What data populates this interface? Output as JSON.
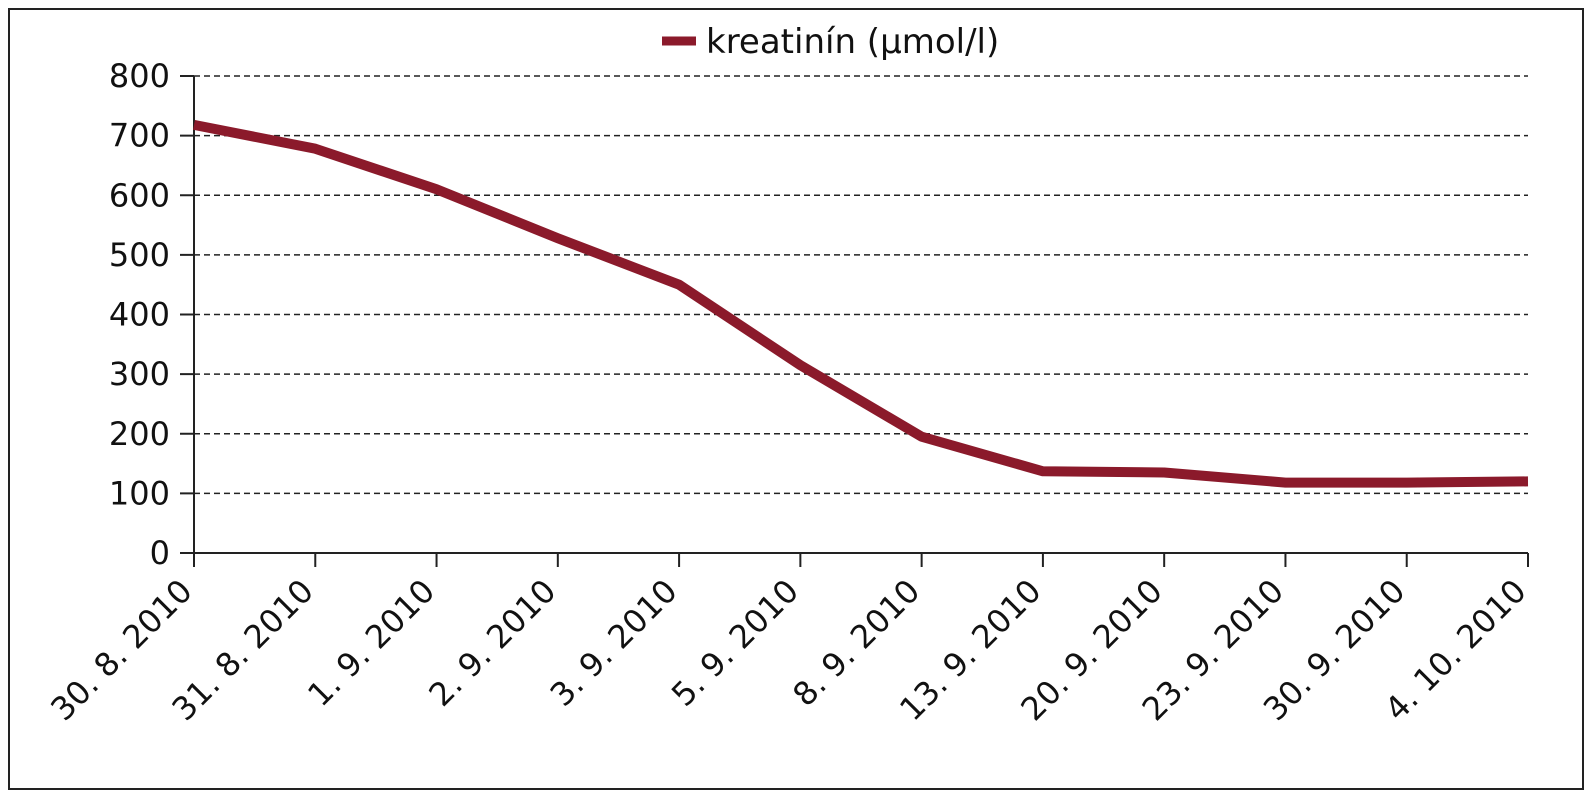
{
  "chart_data": {
    "type": "line",
    "title": "",
    "xlabel": "",
    "ylabel": "",
    "categories": [
      "30. 8. 2010",
      "31. 8. 2010",
      "1. 9. 2010",
      "2. 9. 2010",
      "3. 9. 2010",
      "5. 9. 2010",
      "8. 9. 2010",
      "13. 9. 2010",
      "20. 9. 2010",
      "23. 9. 2010",
      "30. 9. 2010",
      "4. 10. 2010"
    ],
    "series": [
      {
        "name": "kreatinín (µmol/l)",
        "color": "#8b1a2b",
        "values": [
          718,
          678,
          610,
          528,
          450,
          315,
          195,
          137,
          135,
          118,
          118,
          120
        ]
      }
    ],
    "ylim": [
      0,
      800
    ],
    "yticks": [
      0,
      100,
      200,
      300,
      400,
      500,
      600,
      700,
      800
    ],
    "grid": "horizontal-dashed",
    "legend": "top-center"
  }
}
